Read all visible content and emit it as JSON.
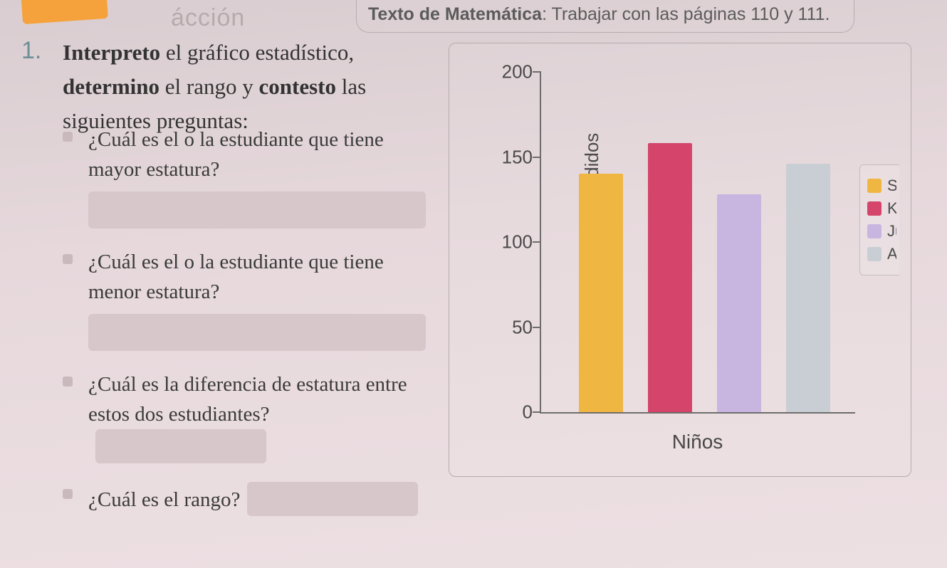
{
  "header": {
    "accion_fragment": "ácción",
    "text_prefix": "Texto de Matemática",
    "text_rest": ": Trabajar con las páginas 110 y 111."
  },
  "exercise_number": "1.",
  "lead": {
    "w1": "Interpreto",
    "t1": " el gráfico estadístico, ",
    "w2": "determino",
    "t2": " el rango y ",
    "w3": "contesto",
    "t3": " las siguientes preguntas:"
  },
  "questions": [
    {
      "text": "¿Cuál es el o la estudiante que tiene mayor estatura?",
      "blank": "block"
    },
    {
      "text": "¿Cuál es el o la estudiante que tiene menor estatura?",
      "blank": "block"
    },
    {
      "text": "¿Cuál es la diferencia de estatura entre estos dos estudiantes?",
      "blank": "inline"
    },
    {
      "text": "¿Cuál es el rango?",
      "blank": "inline"
    }
  ],
  "chart": {
    "type": "bar",
    "y_label": "Cantidad de vehículos vendidos",
    "x_label": "Niños",
    "ylim": [
      0,
      200
    ],
    "ytick_step": 50,
    "tick_labels": [
      "0",
      "50",
      "100",
      "150",
      "200"
    ],
    "axis_color": "#6d6d6d",
    "background": "transparent",
    "bar_width_pct": 14,
    "bar_gap_pct": 8,
    "bars_left_offset_pct": 12,
    "bars": [
      {
        "value": 140,
        "color": "#f0b642"
      },
      {
        "value": 158,
        "color": "#d4446b"
      },
      {
        "value": 128,
        "color": "#c8b6e0"
      },
      {
        "value": 146,
        "color": "#c9ced4"
      }
    ],
    "legend": [
      {
        "label": "Sa",
        "color": "#f0b642"
      },
      {
        "label": "Ka",
        "color": "#d4446b"
      },
      {
        "label": "Ju",
        "color": "#c8b6e0"
      },
      {
        "label": "A",
        "color": "#c9ced4"
      }
    ],
    "label_fontsize": 26,
    "tick_fontsize": 26
  },
  "colors": {
    "page_bg_top": "#d9cdd1",
    "page_bg_bottom": "#ede0e3",
    "blank_fill": "#d7c6ca",
    "orange_tab": "#f5a23c"
  }
}
